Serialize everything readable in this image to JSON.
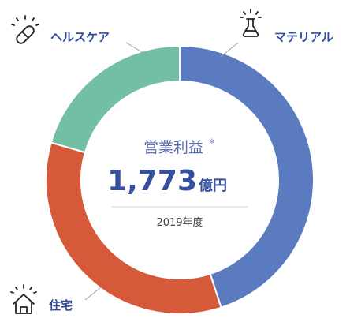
{
  "chart_data": {
    "type": "pie",
    "style": "donut",
    "categories": [
      "マテリアル",
      "住宅",
      "ヘルスケア"
    ],
    "values": [
      45.0,
      34.5,
      20.5
    ],
    "value_unit": "%",
    "colors": {
      "マテリアル": "#5b7bc0",
      "住宅": "#d65a3a",
      "ヘルスケア": "#72bfa4"
    },
    "legend": "none"
  },
  "center": {
    "title": "営業利益",
    "title_mark": "※",
    "value": "1,773",
    "unit": "億円",
    "year": "2019年度"
  },
  "labels": {
    "materials": "マテリアル",
    "homes": "住宅",
    "healthcare": "ヘルスケア"
  },
  "icons": {
    "materials": "flask-icon",
    "homes": "house-icon",
    "healthcare": "capsule-icon"
  },
  "text_color": "#2f4f9e"
}
